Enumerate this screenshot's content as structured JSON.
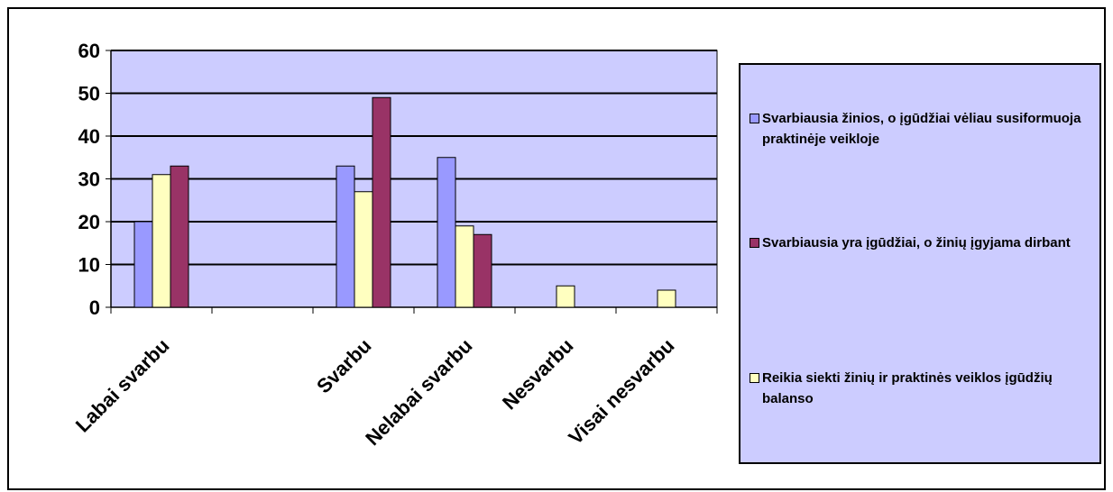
{
  "chart_data": {
    "type": "bar",
    "categories": [
      "Labai svarbu",
      "",
      "Svarbu",
      "Nelabai svarbu",
      "Nesvarbu",
      "Visai nesvarbu"
    ],
    "series": [
      {
        "name": "Svarbiausia žinios, o įgūdžiai vėliau susiformuoja praktinėje veikloje",
        "color": "#9999ff",
        "values": [
          20,
          null,
          33,
          35,
          0,
          0
        ]
      },
      {
        "name": "Reikia siekti žinių ir praktinės veiklos įgūdžių balanso",
        "color": "#ffffc0",
        "values": [
          31,
          null,
          27,
          19,
          5,
          4
        ]
      },
      {
        "name": "Svarbiausia yra įgūdžiai, o žinių įgyjama dirbant",
        "color": "#993366",
        "values": [
          33,
          null,
          49,
          17,
          0,
          0
        ]
      }
    ],
    "ylim": [
      0,
      60
    ],
    "yticks": [
      0,
      10,
      20,
      30,
      40,
      50,
      60
    ],
    "grid": true,
    "plot_background": "#ccccff",
    "legend": {
      "placement": "right",
      "order": [
        0,
        2,
        1
      ]
    }
  }
}
